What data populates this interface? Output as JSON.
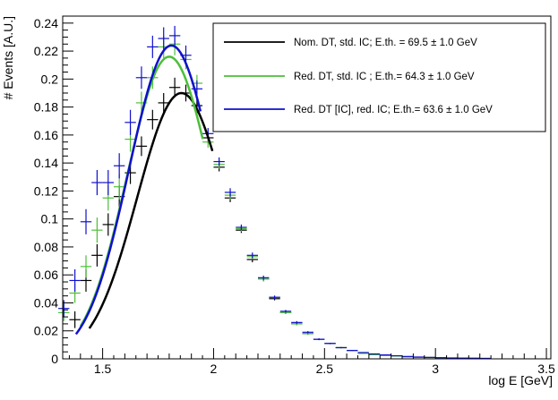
{
  "chart_data": {
    "type": "scatter",
    "title": "",
    "xlabel": "log E [GeV]",
    "ylabel": "# Events [A.U.]",
    "xlim": [
      1.32,
      3.52
    ],
    "ylim": [
      0,
      0.245
    ],
    "grid": false,
    "legend_position": "top-right",
    "x_ticks": [
      1.5,
      2,
      2.5,
      3,
      3.5
    ],
    "x_tick_labels": [
      "1.5",
      "2",
      "2.5",
      "3",
      "3.5"
    ],
    "y_ticks": [
      0,
      0.02,
      0.04,
      0.06,
      0.08,
      0.1,
      0.12,
      0.14,
      0.16,
      0.18,
      0.2,
      0.22,
      0.24
    ],
    "y_tick_labels": [
      "0",
      "0.02",
      "0.04",
      "0.06",
      "0.08",
      "0.1",
      "0.12",
      "0.14",
      "0.16",
      "0.18",
      "0.2",
      "0.22",
      "0.24"
    ],
    "series": [
      {
        "name": "Nom. DT, std. IC; E.th. = 69.5 ± 1.0 GeV",
        "color": "#000000",
        "x": [
          1.375,
          1.425,
          1.475,
          1.525,
          1.575,
          1.625,
          1.675,
          1.725,
          1.775,
          1.825,
          1.875,
          1.925,
          1.975,
          2.025,
          2.075,
          2.125,
          2.175,
          2.225,
          2.275,
          2.325,
          2.375,
          2.425,
          2.475,
          2.525,
          2.575,
          2.625,
          2.675,
          2.725,
          2.775,
          2.825,
          2.875,
          2.925,
          2.975,
          3.025,
          3.075,
          3.125,
          3.175,
          3.225
        ],
        "y": [
          0.028,
          0.056,
          0.074,
          0.096,
          0.116,
          0.133,
          0.152,
          0.171,
          0.183,
          0.194,
          0.19,
          0.181,
          0.158,
          0.137,
          0.115,
          0.092,
          0.071,
          0.057,
          0.043,
          0.033,
          0.025,
          0.018,
          0.014,
          0.011,
          0.008,
          0.006,
          0.004,
          0.003,
          0.0025,
          0.002,
          0.0015,
          0.0012,
          0.001,
          0.0008,
          0.0006,
          0.0005,
          0.0004,
          0.0003
        ],
        "y_err": [
          0.006,
          0.008,
          0.008,
          0.008,
          0.008,
          0.008,
          0.007,
          0.007,
          0.007,
          0.007,
          0.006,
          0.006,
          0.004,
          0.003,
          0.003,
          0.002,
          0.002,
          0.0015,
          0.0012,
          0.001,
          0.001,
          0.0008,
          0.0006,
          0.0005,
          0.0004,
          0.0003,
          0.0003,
          0.0002,
          0.0002,
          0.0002,
          0.0001,
          0.0001,
          0.0001,
          0.0001,
          0.0001,
          0.0001,
          0.0001,
          0.0001
        ],
        "fit_x": [
          1.44,
          1.9949
        ],
        "fit_mu": 1.855,
        "fit_sigma": 0.1994,
        "fit_amp": 0.19
      },
      {
        "name": "Red. DT, std. IC ; E.th.= 64.3 ± 1.0 GeV",
        "color": "#4dbf3a",
        "x": [
          1.325,
          1.375,
          1.425,
          1.475,
          1.525,
          1.575,
          1.625,
          1.675,
          1.725,
          1.775,
          1.825,
          1.875,
          1.925,
          1.975,
          2.025,
          2.075,
          2.125,
          2.175,
          2.225,
          2.275,
          2.325,
          2.375,
          2.425,
          2.475,
          2.525,
          2.575,
          2.625,
          2.675,
          2.725,
          2.775,
          2.825,
          2.875,
          2.925,
          2.975,
          3.025,
          3.075,
          3.125,
          3.175,
          3.225
        ],
        "y": [
          0.033,
          0.047,
          0.066,
          0.092,
          0.115,
          0.123,
          0.157,
          0.183,
          0.201,
          0.223,
          0.225,
          0.214,
          0.197,
          0.155,
          0.139,
          0.117,
          0.093,
          0.073,
          0.057,
          0.044,
          0.033,
          0.025,
          0.018,
          0.014,
          0.011,
          0.008,
          0.006,
          0.004,
          0.003,
          0.0025,
          0.002,
          0.0015,
          0.0012,
          0.001,
          0.0008,
          0.0006,
          0.0005,
          0.0004,
          0.0003
        ],
        "y_err": [
          0.006,
          0.007,
          0.008,
          0.009,
          0.009,
          0.009,
          0.009,
          0.008,
          0.008,
          0.008,
          0.008,
          0.007,
          0.006,
          0.004,
          0.003,
          0.003,
          0.002,
          0.002,
          0.0015,
          0.0012,
          0.001,
          0.001,
          0.0008,
          0.0006,
          0.0005,
          0.0004,
          0.0003,
          0.0003,
          0.0002,
          0.0002,
          0.0002,
          0.0001,
          0.0001,
          0.0001,
          0.0001,
          0.0001,
          0.0001,
          0.0001,
          0.0001
        ],
        "fit_x": [
          1.4,
          1.951
        ],
        "fit_mu": 1.8,
        "fit_sigma": 0.1893,
        "fit_amp": 0.216
      },
      {
        "name": "Red. DT [IC], red. IC; E.th.=  63.6 ± 1.0 GeV",
        "color": "#1010cc",
        "x": [
          1.325,
          1.375,
          1.425,
          1.475,
          1.525,
          1.575,
          1.625,
          1.675,
          1.725,
          1.775,
          1.825,
          1.875,
          1.925,
          1.975,
          2.025,
          2.075,
          2.125,
          2.175,
          2.225,
          2.275,
          2.325,
          2.375,
          2.425,
          2.475,
          2.525,
          2.575,
          2.625,
          2.675,
          2.725,
          2.775,
          2.825,
          2.875,
          2.925,
          2.975,
          3.025,
          3.075,
          3.125,
          3.175,
          3.225
        ],
        "y": [
          0.036,
          0.056,
          0.098,
          0.126,
          0.126,
          0.138,
          0.169,
          0.201,
          0.223,
          0.229,
          0.231,
          0.217,
          0.193,
          0.161,
          0.141,
          0.119,
          0.094,
          0.074,
          0.058,
          0.044,
          0.034,
          0.026,
          0.019,
          0.014,
          0.011,
          0.008,
          0.006,
          0.0045,
          0.0035,
          0.0028,
          0.0022,
          0.0017,
          0.0013,
          0.001,
          0.0008,
          0.0006,
          0.0005,
          0.0004,
          0.0003
        ],
        "y_err": [
          0.006,
          0.008,
          0.009,
          0.009,
          0.009,
          0.009,
          0.009,
          0.008,
          0.008,
          0.008,
          0.007,
          0.007,
          0.006,
          0.004,
          0.003,
          0.003,
          0.002,
          0.002,
          0.0015,
          0.0012,
          0.001,
          0.001,
          0.0008,
          0.0006,
          0.0005,
          0.0004,
          0.0003,
          0.0003,
          0.0002,
          0.0002,
          0.0002,
          0.0001,
          0.0001,
          0.0001,
          0.0001,
          0.0001,
          0.0001,
          0.0001,
          0.0001
        ],
        "fit_x": [
          1.38,
          1.941
        ],
        "fit_mu": 1.81,
        "fit_sigma": 0.1907,
        "fit_amp": 0.224
      }
    ]
  }
}
